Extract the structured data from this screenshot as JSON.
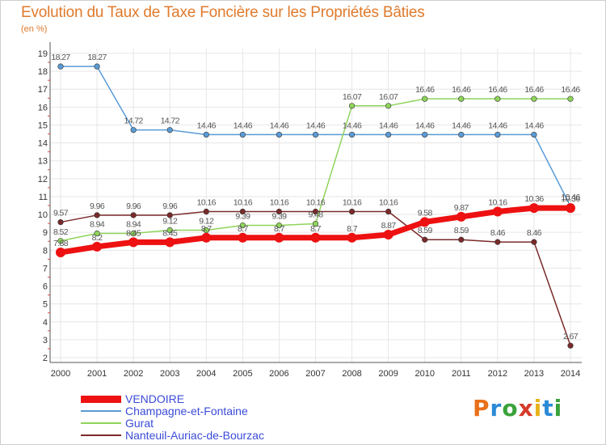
{
  "title": "Evolution du Taux de Taxe Foncière sur les Propriétés Bâties",
  "unit_label": "(en %)",
  "logo_text": "Proxiti",
  "logo_colors": [
    "#e8701a",
    "#2a8ad6",
    "#3aa23a",
    "#d63a2a",
    "#e8b21a",
    "#2a8ad6",
    "#3aa23a"
  ],
  "colors": {
    "grid": "#e6e6e6",
    "axis": "#555555",
    "tick_text": "#333333",
    "label_text": "#555555"
  },
  "chart_data": {
    "type": "line",
    "title": "Evolution du Taux de Taxe Foncière sur les Propriétés Bâties",
    "ylabel": "(en %)",
    "xlabel": "",
    "ylim": [
      2,
      19
    ],
    "yticks": [
      2,
      3,
      4,
      5,
      6,
      7,
      8,
      9,
      10,
      11,
      12,
      13,
      14,
      15,
      16,
      17,
      18,
      19
    ],
    "grid": true,
    "legend_position": "bottom-left",
    "categories": [
      "2000",
      "2001",
      "2002",
      "2003",
      "2004",
      "2005",
      "2006",
      "2007",
      "2008",
      "2009",
      "2010",
      "2011",
      "2012",
      "2013",
      "2014"
    ],
    "series": [
      {
        "name": "Champagne-et-Fontaine",
        "color": "#5a9bd5",
        "width": 1.5,
        "values": [
          18.27,
          18.27,
          14.72,
          14.72,
          14.46,
          14.46,
          14.46,
          14.46,
          14.46,
          14.46,
          14.46,
          14.46,
          14.46,
          14.46,
          10.46
        ],
        "labels": [
          "18.27",
          "18.27",
          "14.72",
          "14.72",
          "14.46",
          "14.46",
          "14.46",
          "14.46",
          "14.46",
          "14.46",
          "14.46",
          "14.46",
          "14.46",
          "14.46",
          "10.46"
        ]
      },
      {
        "name": "Gurat",
        "color": "#8fd45a",
        "width": 1.5,
        "values": [
          8.52,
          8.94,
          8.94,
          9.12,
          9.12,
          9.39,
          9.39,
          9.48,
          16.07,
          16.07,
          16.46,
          16.46,
          16.46,
          16.46,
          16.46
        ],
        "labels": [
          "8.52",
          "8.94",
          "8.94",
          "9.12",
          "9.12",
          "9.39",
          "9.39",
          "9.48",
          "16.07",
          "16.07",
          "16.46",
          "16.46",
          "16.46",
          "16.46",
          "16.46"
        ]
      },
      {
        "name": "Nanteuil-Auriac-de-Bourzac",
        "color": "#7a2a2a",
        "width": 1.5,
        "values": [
          9.57,
          9.96,
          9.96,
          9.96,
          10.16,
          10.16,
          10.16,
          10.16,
          10.16,
          10.16,
          8.59,
          8.59,
          8.46,
          8.46,
          2.67
        ],
        "labels": [
          "9.57",
          "9.96",
          "9.96",
          "9.96",
          "10.16",
          "10.16",
          "10.16",
          "10.16",
          "10.16",
          "10.16",
          "8.59",
          "8.59",
          "8.46",
          "8.46",
          "2.67"
        ]
      },
      {
        "name": "VENDOIRE",
        "color": "#ee1111",
        "width": 7,
        "values": [
          7.88,
          8.2,
          8.45,
          8.45,
          8.7,
          8.7,
          8.7,
          8.7,
          8.7,
          8.87,
          9.58,
          9.87,
          10.16,
          10.36,
          10.36
        ],
        "labels": [
          "7.88",
          "8.2",
          "8.45",
          "8.45",
          "8.7",
          "8.7",
          "8.7",
          "8.7",
          "8.7",
          "8.87",
          "9.58",
          "9.87",
          "10.16",
          "10.36",
          "10.36"
        ]
      }
    ],
    "legend": [
      "VENDOIRE",
      "Champagne-et-Fontaine",
      "Gurat",
      "Nanteuil-Auriac-de-Bourzac"
    ]
  }
}
